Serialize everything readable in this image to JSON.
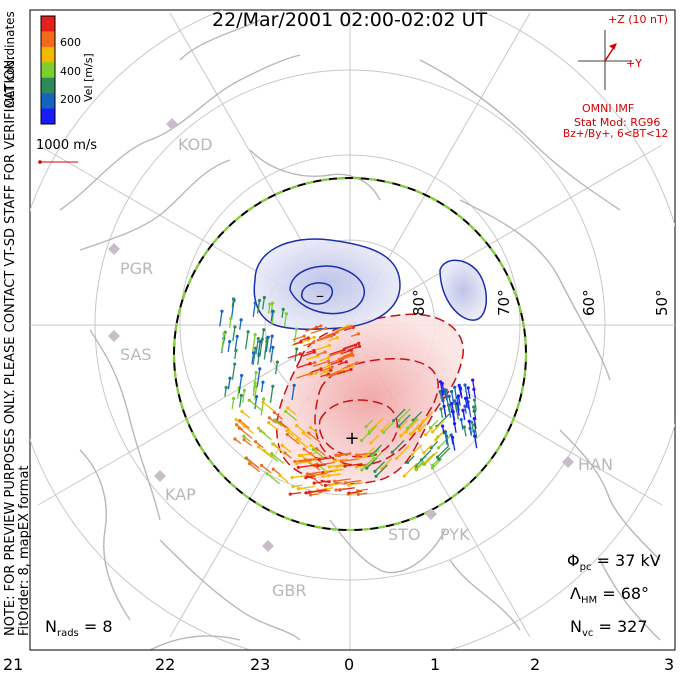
{
  "title": "22/Mar/2001 02:00-02:02 UT",
  "side_note": {
    "line1": "NOTE: FOR PREVIEW PURPOSES ONLY. PLEASE CONTACT VT-SD STAFF FOR VERIFICATION.",
    "line2": "FitOrder: 8, mapEX format"
  },
  "coords_label": "MLT coordinates",
  "colorbar": {
    "label": "Vel [m/s]",
    "ticks": [
      "600",
      "400",
      "200"
    ],
    "colors": [
      "#e3201b",
      "#f26a1b",
      "#f5b800",
      "#7ccf2e",
      "#2e8b57",
      "#1565c0",
      "#1a1aff"
    ]
  },
  "scale_vector": {
    "label": "1000 m/s",
    "color": "#d40000"
  },
  "imf": {
    "z_label": "+Z (10 nT)",
    "y_label": "+Y",
    "source": "OMNI IMF",
    "model": "Stat Mod: RG96",
    "condition": "Bz+/By+, 6<BT<12"
  },
  "latitude_labels": [
    "80°",
    "70°",
    "60°",
    "50°"
  ],
  "stations": [
    "KOD",
    "PGR",
    "SAS",
    "KAP",
    "GBR",
    "STO",
    "PYK",
    "HAN"
  ],
  "potential_markers": {
    "min": "–",
    "max": "+"
  },
  "stats": {
    "phi_pc": {
      "label": "Φ",
      "sub": "pc",
      "value": "= 37 kV"
    },
    "lambda_hm": {
      "label": "Λ",
      "sub": "HM",
      "value": "= 68°"
    },
    "n_vc": {
      "label": "N",
      "sub": "vc",
      "value": "= 327"
    },
    "n_rads": {
      "label": "N",
      "sub": "rads",
      "value": "= 8"
    }
  },
  "mlt_axis": [
    "21",
    "22",
    "23",
    "0",
    "1",
    "2",
    "3"
  ]
}
